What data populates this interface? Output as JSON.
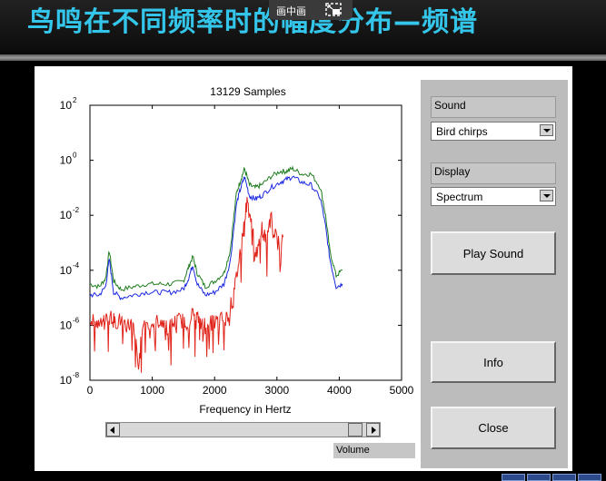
{
  "slide": {
    "title": "鸟鸣在不同频率时的幅度分布—频谱"
  },
  "overlay": {
    "pip_label": "画中画",
    "pip_icon": "picture-in-picture-exit-icon"
  },
  "plot": {
    "title": "13129 Samples",
    "xlabel": "Frequency in Hertz"
  },
  "sound_frame": {
    "label": "Sound",
    "selected": "Bird chirps"
  },
  "display_frame": {
    "label": "Display",
    "selected": "Spectrum"
  },
  "buttons": {
    "play": "Play Sound",
    "info": "Info",
    "close": "Close"
  },
  "volume": {
    "label": "Volume"
  },
  "colors": {
    "title_text": "#34c6ea",
    "series_green": "#1e7d1e",
    "series_blue": "#1a28e0",
    "series_red": "#e0241a"
  },
  "chart_data": {
    "type": "line",
    "title": "13129 Samples",
    "xlabel": "Frequency in Hertz",
    "ylabel": "",
    "xlim": [
      0,
      5000
    ],
    "ylim_log10": [
      -8,
      2
    ],
    "yscale": "log",
    "x_ticks": [
      "0",
      "1000",
      "2000",
      "3000",
      "4000",
      "5000"
    ],
    "y_ticks": [
      "10^2",
      "10^0",
      "10^-2",
      "10^-4",
      "10^-6",
      "10^-8"
    ],
    "series": [
      {
        "color": "green",
        "x": [
          0,
          150,
          250,
          310,
          380,
          500,
          700,
          900,
          1100,
          1300,
          1500,
          1580,
          1650,
          1720,
          1850,
          2000,
          2150,
          2250,
          2350,
          2420,
          2480,
          2560,
          2650,
          2750,
          2900,
          3050,
          3150,
          3250,
          3400,
          3550,
          3700,
          3780,
          3850,
          3950,
          4050
        ],
        "y_log10": [
          -4.5,
          -4.6,
          -4.3,
          -3.3,
          -4.4,
          -4.7,
          -4.6,
          -4.5,
          -4.5,
          -4.5,
          -4.4,
          -3.9,
          -3.5,
          -4.1,
          -4.6,
          -4.4,
          -4.1,
          -3.3,
          -1.2,
          -0.7,
          -0.3,
          -0.9,
          -1.0,
          -0.9,
          -0.6,
          -0.4,
          -0.4,
          -0.3,
          -0.5,
          -0.5,
          -1.0,
          -2.0,
          -3.3,
          -4.2,
          -4.0
        ]
      },
      {
        "color": "blue",
        "x": [
          0,
          150,
          250,
          310,
          380,
          500,
          700,
          900,
          1100,
          1300,
          1500,
          1580,
          1650,
          1720,
          1850,
          2000,
          2150,
          2250,
          2350,
          2420,
          2480,
          2560,
          2650,
          2750,
          2900,
          3050,
          3150,
          3250,
          3400,
          3550,
          3700,
          3780,
          3850,
          3950,
          4050
        ],
        "y_log10": [
          -4.9,
          -4.9,
          -4.6,
          -3.6,
          -4.8,
          -5.0,
          -4.9,
          -4.8,
          -4.8,
          -4.8,
          -4.7,
          -4.3,
          -3.8,
          -4.5,
          -4.9,
          -4.8,
          -4.5,
          -3.7,
          -1.6,
          -1.0,
          -0.6,
          -1.3,
          -1.4,
          -1.3,
          -1.0,
          -0.8,
          -0.7,
          -0.6,
          -0.8,
          -0.9,
          -1.4,
          -2.4,
          -3.6,
          -4.6,
          -4.5
        ]
      },
      {
        "color": "red",
        "x": [
          0,
          100,
          200,
          260,
          330,
          400,
          500,
          600,
          700,
          780,
          850,
          950,
          1050,
          1150,
          1250,
          1350,
          1450,
          1550,
          1650,
          1720,
          1800,
          1900,
          2000,
          2100,
          2200,
          2300,
          2380,
          2450,
          2520,
          2600,
          2680,
          2750,
          2820,
          2900,
          3000,
          3100
        ],
        "y_log10": [
          -5.7,
          -5.9,
          -6.0,
          -5.8,
          -5.6,
          -5.9,
          -5.8,
          -6.0,
          -5.9,
          -7.6,
          -5.8,
          -6.0,
          -5.9,
          -5.8,
          -6.1,
          -5.9,
          -5.8,
          -5.9,
          -5.6,
          -5.7,
          -6.0,
          -5.8,
          -5.9,
          -5.8,
          -5.7,
          -5.0,
          -3.8,
          -2.7,
          -1.5,
          -2.3,
          -3.6,
          -2.4,
          -2.9,
          -2.0,
          -3.0,
          -2.8
        ]
      }
    ]
  }
}
